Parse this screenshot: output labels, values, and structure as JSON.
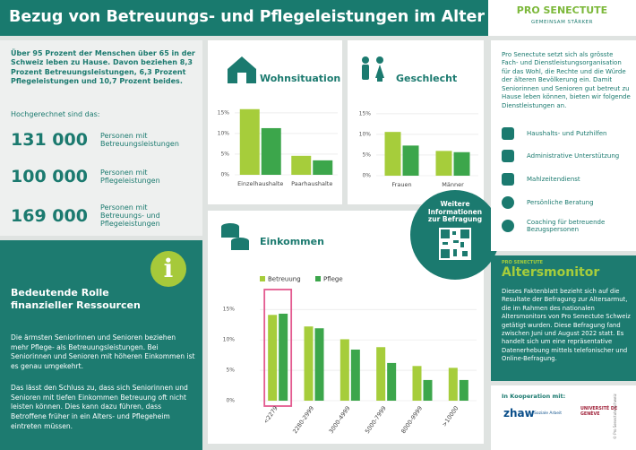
{
  "header": {
    "title": "Bezug von Betreuungs- und Pflegeleistungen im Alter",
    "logo": "PRO SENECTUTE",
    "logo_tagline": "GEMEINSAM STÄRKER"
  },
  "intro": {
    "text": "Über 95 Prozent der Menschen über 65 in der Schweiz leben zu Hause. Davon beziehen 8,3 Prozent Betreuungsleistungen, 6,3 Prozent Pflegeleistungen und 10,7 Prozent beides.",
    "lead": "Hochgerechnet sind das:",
    "stats": [
      {
        "value": "131 000",
        "label": "Personen mit Betreuungsleistungen"
      },
      {
        "value": "100 000",
        "label": "Personen mit Pflegeleistungen"
      },
      {
        "value": "169 000",
        "label": "Personen mit Betreuungs- und Pflegeleistungen"
      }
    ]
  },
  "info": {
    "title": "Bedeutende Rolle finanzieller Ressourcen",
    "paragraphs": [
      "Die ärmsten Seniorinnen und Senioren beziehen mehr Pflege- als Betreuungsleistungen. Bei Seniorinnen und Senioren mit höheren Einkommen ist es genau umgekehrt.",
      "Das lässt den Schluss zu, dass sich Seniorinnen und Senioren mit tiefen Einkommen Betreuung oft nicht leisten können. Dies kann dazu führen, dass Betroffene früher in ein Alters- und Pflegeheim eintreten müssen."
    ]
  },
  "qr_badge": "Weitere Informationen zur Befragung",
  "about": {
    "text": "Pro Senectute setzt sich als grösste Fach- und Dienstleistungsorganisation für das Wohl, die Rechte und die Würde der älteren Bevölkerung ein. Damit Seniorinnen und Senioren gut betreut zu Hause leben können, bieten wir folgende Dienstleistungen an.",
    "services": [
      "Haushalts- und Putzhilfen",
      "Administrative Unterstützung",
      "Mahlzeitendienst",
      "Persönliche Beratung",
      "Coaching für betreuende Bezugspersonen"
    ]
  },
  "monitor": {
    "brand": "PRO SENECTUTE",
    "title": "Altersmonitor",
    "text": "Dieses Faktenblatt bezieht sich auf die Resultate der Befragung zur Altersarmut, die im Rahmen des nationalen Altersmonitors von Pro Senectute Schweiz getätigt wurden. Diese Befragung fand zwischen Juni und August 2022 statt. Es handelt sich um eine repräsentative Datenerhebung mittels telefonischer und Online-Befragung."
  },
  "cooperation": {
    "title": "In Kooperation mit:",
    "partners": [
      "zhaw",
      "Soziale Arbeit",
      "UNIVERSITÉ DE GENÈVE"
    ]
  },
  "copyright": "© Pro Senectute Schweiz",
  "chart_data": [
    {
      "type": "bar",
      "title": "Wohnsituation",
      "categories": [
        "Einzelhaushalte",
        "Paarhaushalte"
      ],
      "series": [
        {
          "color": "#a6cd3b",
          "values": [
            15.9,
            4.6
          ]
        },
        {
          "color": "#3ca64b",
          "values": [
            11.3,
            3.5
          ]
        }
      ],
      "ylim": [
        0,
        16.5
      ],
      "yticks": [
        {
          "value": 0,
          "label": "0%"
        },
        {
          "value": 5,
          "label": "5%"
        },
        {
          "value": 10,
          "label": "10%"
        },
        {
          "value": 15,
          "label": "15%"
        }
      ],
      "grid": true
    },
    {
      "type": "bar",
      "title": "Geschlecht",
      "categories": [
        "Frauen",
        "Männer"
      ],
      "series": [
        {
          "color": "#a6cd3b",
          "values": [
            10.6,
            6.0
          ]
        },
        {
          "color": "#3ca64b",
          "values": [
            7.3,
            5.7
          ]
        }
      ],
      "ylim": [
        0,
        16.5
      ],
      "yticks": [
        {
          "value": 0,
          "label": "0%"
        },
        {
          "value": 5,
          "label": "5%"
        },
        {
          "value": 10,
          "label": "10%"
        },
        {
          "value": 15,
          "label": "15%"
        }
      ],
      "grid": true
    },
    {
      "type": "bar",
      "title": "Einkommen",
      "categories": [
        "<2279",
        "2280-2999",
        "3000-4999",
        "5000-7999",
        "8000-9999",
        ">10000"
      ],
      "series": [
        {
          "name": "Betreuung",
          "color": "#a6cd3b",
          "values": [
            14.1,
            12.2,
            10.1,
            8.8,
            5.7,
            5.4
          ]
        },
        {
          "name": "Pflege",
          "color": "#3ca64b",
          "values": [
            14.3,
            11.9,
            8.4,
            6.2,
            3.4,
            3.4
          ]
        }
      ],
      "ylim": [
        0,
        16.5
      ],
      "yticks": [
        {
          "value": 0,
          "label": "0%"
        },
        {
          "value": 5,
          "label": "5%"
        },
        {
          "value": 10,
          "label": "10%"
        },
        {
          "value": 15,
          "label": "15%"
        }
      ],
      "grid": true,
      "legend": "top-left"
    }
  ]
}
